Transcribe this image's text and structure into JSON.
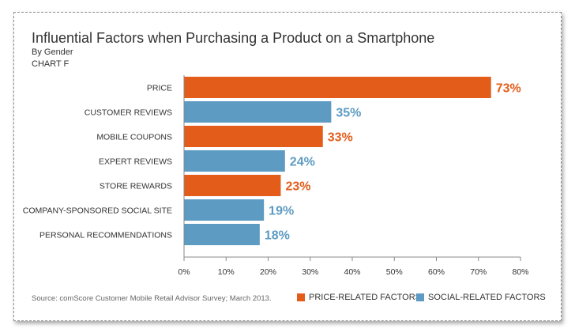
{
  "chart_data": {
    "type": "bar",
    "orientation": "horizontal",
    "title": "Influential Factors when Purchasing a Product on a Smartphone",
    "subtitle": "By Gender",
    "chart_label": "CHART F",
    "categories": [
      "PRICE",
      "CUSTOMER REVIEWS",
      "MOBILE COUPONS",
      "EXPERT REVIEWS",
      "STORE REWARDS",
      "COMPANY-SPONSORED SOCIAL SITE",
      "PERSONAL RECOMMENDATIONS"
    ],
    "values": [
      73,
      35,
      33,
      24,
      23,
      19,
      18
    ],
    "value_labels": [
      "73%",
      "35%",
      "33%",
      "24%",
      "23%",
      "19%",
      "18%"
    ],
    "groups": [
      "price",
      "social",
      "price",
      "social",
      "price",
      "social",
      "social"
    ],
    "xlim": [
      0,
      80
    ],
    "x_ticks": [
      "0%",
      "10%",
      "20%",
      "30%",
      "40%",
      "50%",
      "60%",
      "70%",
      "80%"
    ],
    "x_tick_values": [
      0,
      10,
      20,
      30,
      40,
      50,
      60,
      70,
      80
    ],
    "grid": false,
    "legend": [
      {
        "key": "price",
        "label": "PRICE-RELATED FACTORS",
        "color": "#e35c1a"
      },
      {
        "key": "social",
        "label": "SOCIAL-RELATED FACTORS",
        "color": "#5d9bc2"
      }
    ],
    "legend_position": "bottom-right",
    "source": "Source: comScore Customer Mobile Retail Advisor Survey; March 2013."
  }
}
